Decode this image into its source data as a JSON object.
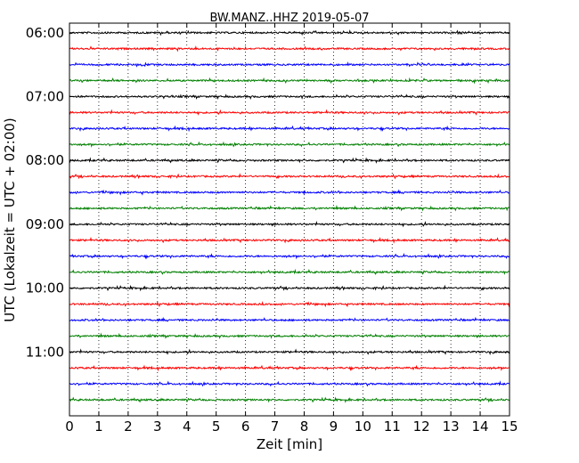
{
  "chart_data": {
    "type": "line",
    "title": "BW.MANZ..HHZ 2019-05-07",
    "xlabel": "Zeit  [min]",
    "ylabel": "UTC (Lokalzeit = UTC + 02:00)",
    "xlim": [
      0,
      15
    ],
    "x_ticks": [
      "0",
      "1",
      "2",
      "3",
      "4",
      "5",
      "6",
      "7",
      "8",
      "9",
      "10",
      "11",
      "12",
      "13",
      "14",
      "15"
    ],
    "ylim_hours": [
      5.85,
      12.0
    ],
    "y_ticks": [
      {
        "hour": 6,
        "label": "06:00"
      },
      {
        "hour": 7,
        "label": "07:00"
      },
      {
        "hour": 8,
        "label": "08:00"
      },
      {
        "hour": 9,
        "label": "09:00"
      },
      {
        "hour": 10,
        "label": "10:00"
      },
      {
        "hour": 11,
        "label": "11:00"
      }
    ],
    "grid": "vertical dotted at each minute",
    "trace_interval_min": 15,
    "traces": [
      {
        "start": "06:00",
        "color": "#000000"
      },
      {
        "start": "06:15",
        "color": "#ff0000"
      },
      {
        "start": "06:30",
        "color": "#0000ff"
      },
      {
        "start": "06:45",
        "color": "#008000"
      },
      {
        "start": "07:00",
        "color": "#000000"
      },
      {
        "start": "07:15",
        "color": "#ff0000"
      },
      {
        "start": "07:30",
        "color": "#0000ff"
      },
      {
        "start": "07:45",
        "color": "#008000"
      },
      {
        "start": "08:00",
        "color": "#000000"
      },
      {
        "start": "08:15",
        "color": "#ff0000"
      },
      {
        "start": "08:30",
        "color": "#0000ff"
      },
      {
        "start": "08:45",
        "color": "#008000"
      },
      {
        "start": "09:00",
        "color": "#000000"
      },
      {
        "start": "09:15",
        "color": "#ff0000"
      },
      {
        "start": "09:30",
        "color": "#0000ff"
      },
      {
        "start": "09:45",
        "color": "#008000"
      },
      {
        "start": "10:00",
        "color": "#000000"
      },
      {
        "start": "10:15",
        "color": "#ff0000"
      },
      {
        "start": "10:30",
        "color": "#0000ff"
      },
      {
        "start": "10:45",
        "color": "#008000"
      },
      {
        "start": "11:00",
        "color": "#000000"
      },
      {
        "start": "11:15",
        "color": "#ff0000"
      },
      {
        "start": "11:30",
        "color": "#0000ff"
      },
      {
        "start": "11:45",
        "color": "#008000"
      }
    ]
  }
}
